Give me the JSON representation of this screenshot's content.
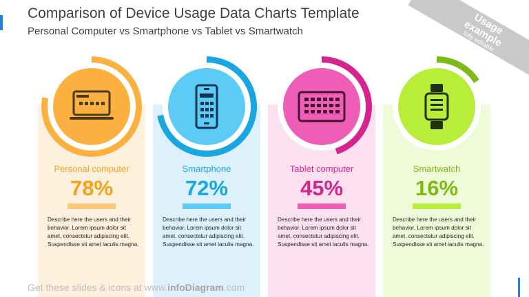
{
  "header": {
    "title": "Comparison of Device Usage Data Charts Template",
    "subtitle": "Personal Computer vs Smartphone vs Tablet vs Smartwatch"
  },
  "ribbon": {
    "line1": "Usage",
    "line2": "example",
    "line3": "fully editable"
  },
  "cards": [
    {
      "label": "Personal computer",
      "percent": "78%",
      "value": 78,
      "icon": "laptop-icon",
      "desc": "Describe here the users and their behavior. Lorem ipsum dolor sit amet, consectetur adipiscing elit. Suspendisse sit amet iaculis magna.",
      "colors": {
        "bg": "#fdf0dc",
        "ring": "#fbb040",
        "circle": "#fbb040",
        "text": "#f7a21b",
        "bar": "#fcc97a",
        "icon": "#4a3a1a"
      }
    },
    {
      "label": "Smartphone",
      "percent": "72%",
      "value": 72,
      "icon": "smartphone-icon",
      "desc": "Describe here the users and their behavior. Lorem ipsum dolor sit amet, consectetur adipiscing elit. Suspendisse sit amet iaculis magna.",
      "colors": {
        "bg": "#dcf1fb",
        "ring": "#1aa6e0",
        "circle": "#5ccbf5",
        "text": "#1aa6e0",
        "bar": "#5ccbf5",
        "icon": "#0f3552"
      }
    },
    {
      "label": "Tablet computer",
      "percent": "45%",
      "value": 45,
      "icon": "tablet-icon",
      "desc": "Describe here the users and their behavior. Lorem ipsum dolor sit amet, consectetur adipiscing elit. Suspendisse sit amet iaculis magna.",
      "colors": {
        "bg": "#fbe0f0",
        "ring": "#d6248f",
        "circle": "#ee5eb6",
        "text": "#d6248f",
        "bar": "#ee5eb6",
        "icon": "#4a0e33"
      }
    },
    {
      "label": "Smartwatch",
      "percent": "16%",
      "value": 16,
      "icon": "smartwatch-icon",
      "desc": "Describe here the users and their behavior. Lorem ipsum dolor sit amet, consectetur adipiscing elit. Suspendisse sit amet iaculis magna.",
      "colors": {
        "bg": "#effad8",
        "ring": "#7cbb16",
        "circle": "#b8ed3a",
        "text": "#7cbb16",
        "bar": "#b8ed3a",
        "icon": "#1f3306"
      }
    }
  ],
  "footer": {
    "prefix": "Get these slides & icons at www.",
    "brand": "infoDiagram",
    "suffix": ".com"
  }
}
